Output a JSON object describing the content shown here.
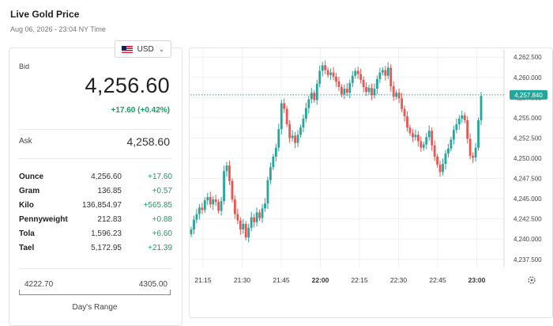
{
  "page": {
    "title": "Live Gold Price",
    "subtitle": "Aug 06, 2026 - 23:04 NY Time"
  },
  "currency": {
    "value": "USD",
    "flag_icon": "us-flag-icon"
  },
  "quote": {
    "bid_label": "Bid",
    "bid": "4,256.60",
    "bid_change": "+17.60 (+0.42%)",
    "ask_label": "Ask",
    "ask": "4,258.60",
    "change_color": "#1a9e63"
  },
  "units": [
    {
      "name": "Ounce",
      "price": "4,256.60",
      "change": "+17.60"
    },
    {
      "name": "Gram",
      "price": "136.85",
      "change": "+0.57"
    },
    {
      "name": "Kilo",
      "price": "136,854.97",
      "change": "+565.85"
    },
    {
      "name": "Pennyweight",
      "price": "212.83",
      "change": "+0.88"
    },
    {
      "name": "Tola",
      "price": "1,596.23",
      "change": "+6.60"
    },
    {
      "name": "Tael",
      "price": "5,172.95",
      "change": "+21.39"
    }
  ],
  "range": {
    "low": "4222.70",
    "high": "4305.00",
    "label": "Day's Range"
  },
  "chart_data": {
    "type": "candlestick",
    "x_ticks": [
      "21:15",
      "21:30",
      "21:45",
      "22:00",
      "22:15",
      "22:30",
      "22:45",
      "23:00"
    ],
    "bold_x_ticks": [
      "22:00",
      "23:00"
    ],
    "y_ticks": [
      "4,262.500",
      "4,260.000",
      "4,257.500",
      "4,255.000",
      "4,252.500",
      "4,250.000",
      "4,247.500",
      "4,245.000",
      "4,242.500",
      "4,240.000",
      "4,237.500"
    ],
    "ylim": [
      4236.5,
      4263.5
    ],
    "current_price": "4,257.840",
    "current_value": 4257.84,
    "up_color": "#26a69a",
    "down_color": "#ef5350",
    "grid": true,
    "settings_icon": "gear-icon",
    "closes": [
      4241.2,
      4242.4,
      4243.1,
      4243.9,
      4243.6,
      4244.8,
      4245.2,
      4244.3,
      4244.9,
      4244.6,
      4243.5,
      4244.7,
      4248.4,
      4249.1,
      4247.2,
      4244.9,
      4243.1,
      4242.3,
      4241.2,
      4241.9,
      4240.2,
      4241.4,
      4242.7,
      4242.1,
      4243.3,
      4242.6,
      4243.8,
      4244.4,
      4247.3,
      4248.9,
      4250.2,
      4251.3,
      4253.6,
      4256.8,
      4256.1,
      4254.2,
      4252.5,
      4252.8,
      4251.9,
      4252.9,
      4253.8,
      4254.9,
      4256.2,
      4257.3,
      4258.1,
      4257.2,
      4259.2,
      4260.8,
      4261.5,
      4260.9,
      4260.3,
      4260.6,
      4260.1,
      4259.5,
      4258.8,
      4257.9,
      4258.6,
      4258.1,
      4259.3,
      4260.2,
      4260.8,
      4260.4,
      4259.7,
      4258.8,
      4258.2,
      4258.7,
      4257.8,
      4258.6,
      4259.8,
      4260.6,
      4260.9,
      4260.2,
      4261.2,
      4258.9,
      4257.6,
      4258.1,
      4257.4,
      4256.1,
      4255.2,
      4253.8,
      4253.1,
      4252.6,
      4252.9,
      4252.1,
      4251.3,
      4251.7,
      4252.6,
      4253.4,
      4251.6,
      4250.2,
      4249.2,
      4248.3,
      4249.3,
      4250.6,
      4251.2,
      4252.3,
      4253.5,
      4254.2,
      4254.9,
      4255.3,
      4254.7,
      4252.4,
      4250.3,
      4250.1,
      4251.3,
      4254.7,
      4257.7
    ]
  }
}
